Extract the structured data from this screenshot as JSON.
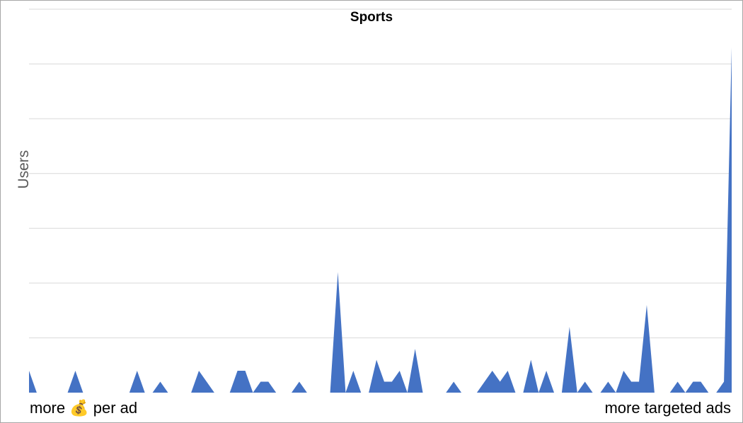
{
  "chart_data": {
    "type": "area",
    "title": "Sports",
    "ylabel": "Users",
    "xlabel_left": "more 💰 per ad",
    "xlabel_right": "more targeted ads",
    "ylim": [
      0,
      7
    ],
    "grid": true,
    "series": [
      {
        "color": "#4472c4",
        "values": [
          0.4,
          0,
          0,
          0,
          0,
          0,
          0.4,
          0,
          0,
          0,
          0,
          0,
          0,
          0,
          0.4,
          0,
          0,
          0.2,
          0,
          0,
          0,
          0,
          0.4,
          0.2,
          0,
          0,
          0,
          0.4,
          0.4,
          0,
          0.2,
          0.2,
          0,
          0,
          0,
          0.2,
          0,
          0,
          0,
          0,
          2.2,
          0,
          0.4,
          0,
          0,
          0.6,
          0.2,
          0.2,
          0.4,
          0,
          0.8,
          0,
          0,
          0,
          0,
          0.2,
          0,
          0,
          0,
          0.2,
          0.4,
          0.2,
          0.4,
          0,
          0,
          0.6,
          0,
          0.4,
          0,
          0,
          1.2,
          0,
          0.2,
          0,
          0,
          0.2,
          0,
          0.4,
          0.2,
          0.2,
          1.6,
          0,
          0,
          0,
          0.2,
          0,
          0.2,
          0.2,
          0,
          0,
          0.2,
          6.3
        ]
      }
    ]
  }
}
